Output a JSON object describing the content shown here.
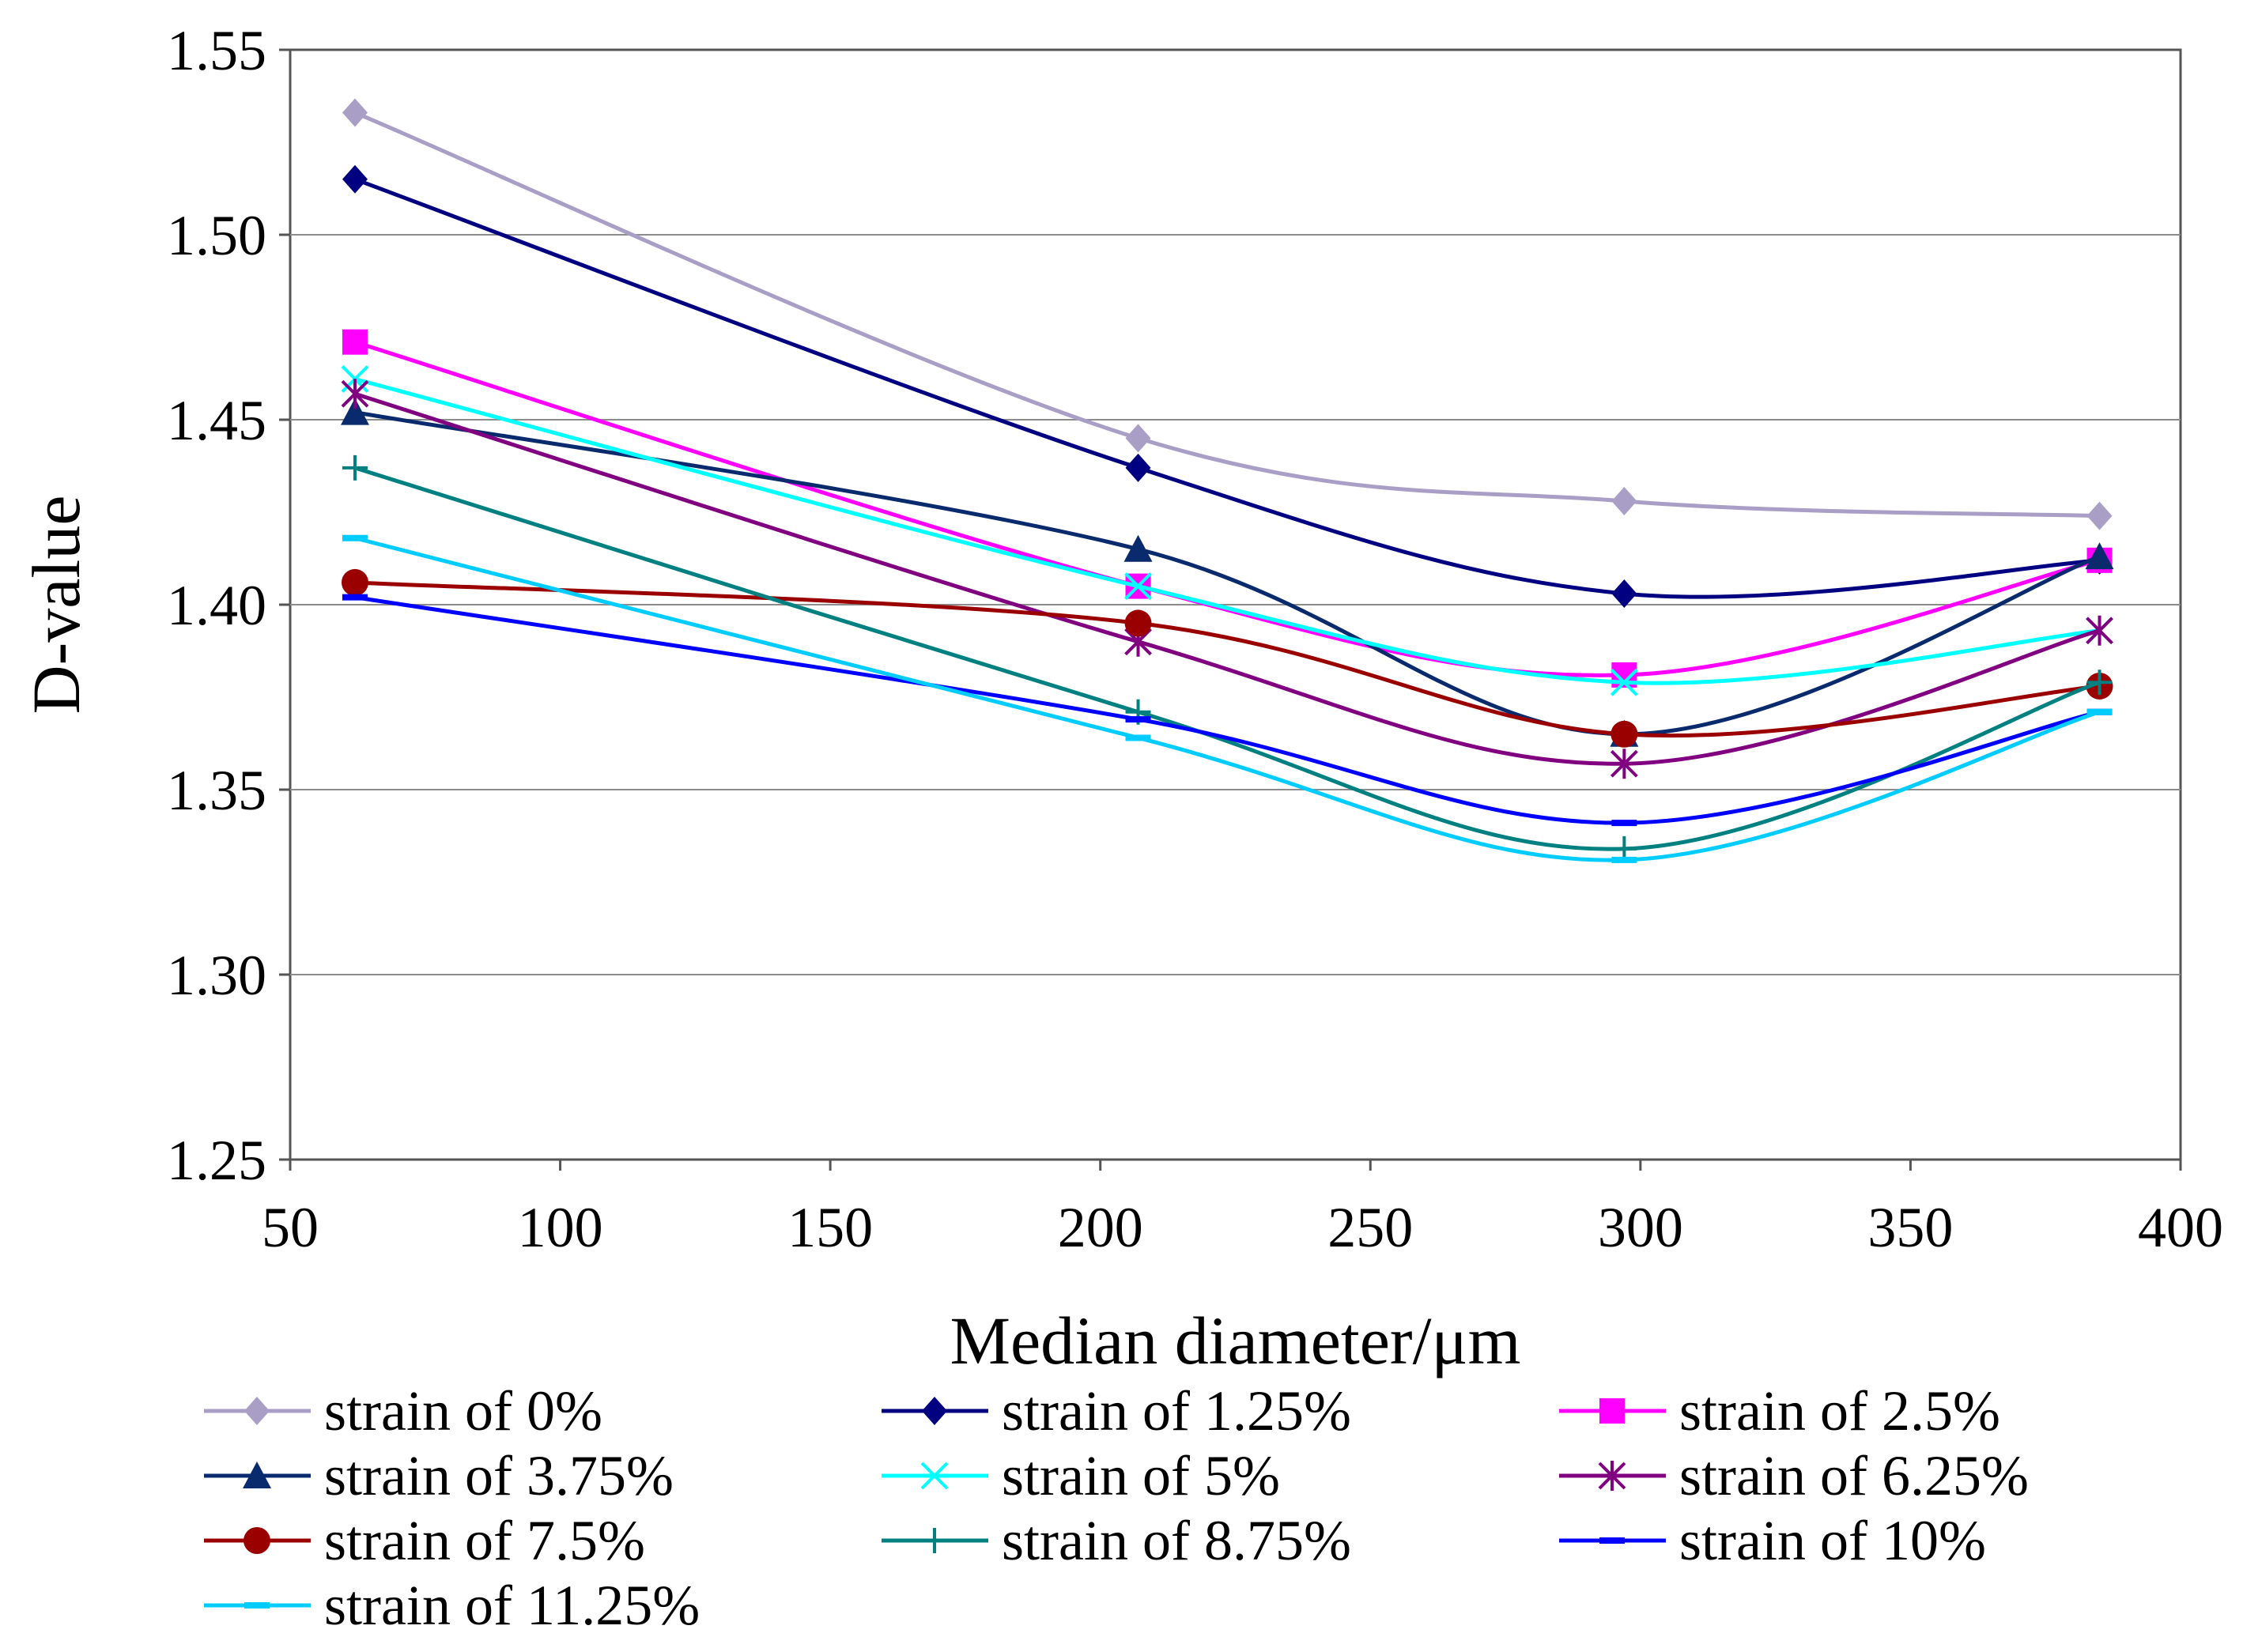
{
  "chart_data": {
    "type": "line",
    "title": "",
    "xlabel": "Median diameter/μm",
    "ylabel": "D-value",
    "xlim": [
      50,
      400
    ],
    "ylim": [
      1.25,
      1.55
    ],
    "xticks": [
      50,
      100,
      150,
      200,
      250,
      300,
      350,
      400
    ],
    "yticks": [
      1.25,
      1.3,
      1.35,
      1.4,
      1.45,
      1.5,
      1.55
    ],
    "x_tick_labels": [
      "50",
      "100",
      "150",
      "200",
      "250",
      "300",
      "350",
      "400"
    ],
    "y_tick_labels": [
      "1.25",
      "1.30",
      "1.35",
      "1.40",
      "1.45",
      "1.50",
      "1.55"
    ],
    "grid": "horizontal",
    "legend_position": "bottom",
    "x": [
      62,
      207,
      297,
      385
    ],
    "series": [
      {
        "name": "strain of 0%",
        "values": [
          1.533,
          1.445,
          1.428,
          1.424
        ],
        "color": "#a89ec6",
        "marker": "diamond"
      },
      {
        "name": "strain of 1.25%",
        "values": [
          1.515,
          1.437,
          1.403,
          1.412
        ],
        "color": "#000080",
        "marker": "diamond"
      },
      {
        "name": "strain of 2.5%",
        "values": [
          1.471,
          1.405,
          1.381,
          1.412
        ],
        "color": "#ff00ff",
        "marker": "square"
      },
      {
        "name": "strain of 3.75%",
        "values": [
          1.452,
          1.415,
          1.365,
          1.413
        ],
        "color": "#0a2a6e",
        "marker": "triangle"
      },
      {
        "name": "strain of 5%",
        "values": [
          1.461,
          1.405,
          1.379,
          1.393
        ],
        "color": "#00ffff",
        "marker": "x"
      },
      {
        "name": "strain of 6.25%",
        "values": [
          1.457,
          1.39,
          1.357,
          1.393
        ],
        "color": "#800080",
        "marker": "asterisk"
      },
      {
        "name": "strain of 7.5%",
        "values": [
          1.406,
          1.395,
          1.365,
          1.378
        ],
        "color": "#9b0000",
        "marker": "circle"
      },
      {
        "name": "strain of 8.75%",
        "values": [
          1.437,
          1.371,
          1.334,
          1.379
        ],
        "color": "#008080",
        "marker": "plus"
      },
      {
        "name": "strain of 10%",
        "values": [
          1.402,
          1.369,
          1.341,
          1.371
        ],
        "color": "#0000ff",
        "marker": "dash"
      },
      {
        "name": "strain of 11.25%",
        "values": [
          1.418,
          1.364,
          1.331,
          1.371
        ],
        "color": "#00ccff",
        "marker": "dash"
      }
    ]
  }
}
